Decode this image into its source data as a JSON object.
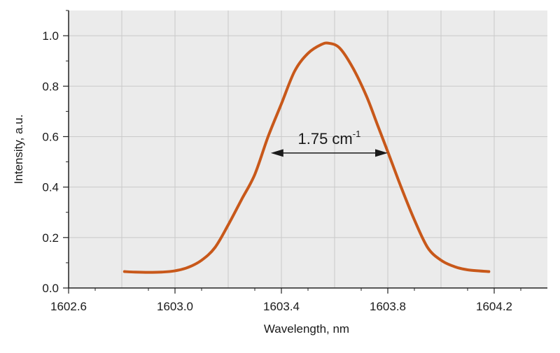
{
  "chart_data": {
    "type": "line",
    "title": "",
    "xlabel": "Wavelength, nm",
    "ylabel": "Intensity, a.u.",
    "xlim": [
      1602.6,
      1604.4
    ],
    "ylim": [
      0.0,
      1.1
    ],
    "x_ticks": [
      1602.6,
      1603.0,
      1603.4,
      1603.8,
      1604.2
    ],
    "x_tick_labels": [
      "1602.6",
      "1603.0",
      "1603.4",
      "1603.8",
      "1604.2"
    ],
    "y_ticks": [
      0.0,
      0.2,
      0.4,
      0.6,
      0.8,
      1.0
    ],
    "y_tick_labels": [
      "0.0",
      "0.2",
      "0.4",
      "0.6",
      "0.8",
      "1.0"
    ],
    "grid": true,
    "legend": "none",
    "colors": {
      "series": "#c8581a",
      "plot_background": "#ebebeb",
      "grid": "#c9c9c9",
      "axis": "#222222"
    },
    "series": [
      {
        "x": [
          1602.81,
          1602.85,
          1602.9,
          1602.95,
          1603.0,
          1603.05,
          1603.1,
          1603.15,
          1603.2,
          1603.25,
          1603.3,
          1603.35,
          1603.4,
          1603.45,
          1603.5,
          1603.55,
          1603.58,
          1603.62,
          1603.67,
          1603.72,
          1603.76,
          1603.8,
          1603.85,
          1603.9,
          1603.95,
          1604.0,
          1604.05,
          1604.1,
          1604.18
        ],
        "y": [
          0.065,
          0.063,
          0.062,
          0.063,
          0.068,
          0.082,
          0.11,
          0.16,
          0.25,
          0.35,
          0.45,
          0.6,
          0.73,
          0.86,
          0.93,
          0.965,
          0.97,
          0.95,
          0.87,
          0.76,
          0.65,
          0.54,
          0.4,
          0.27,
          0.16,
          0.11,
          0.085,
          0.072,
          0.065
        ]
      }
    ],
    "annotations": [
      {
        "type": "double-arrow",
        "x_start": 1603.36,
        "x_end": 1603.8,
        "y": 0.535,
        "label_base": "1.75 cm",
        "label_sup": "-1"
      }
    ]
  }
}
